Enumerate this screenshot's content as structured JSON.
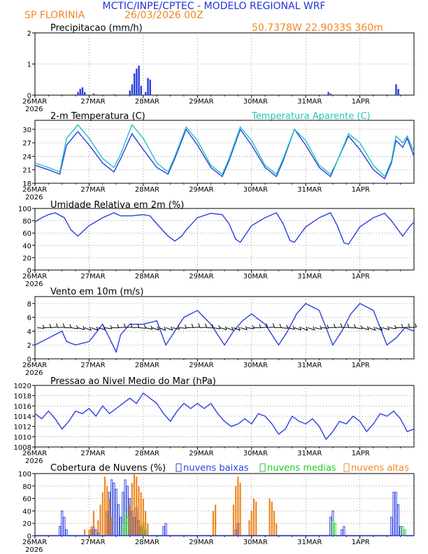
{
  "header": {
    "title": "MCTIC/INPE/CPTEC - MODELO REGIONAL WRF",
    "location": "SP FLORINIA",
    "run": "26/03/2026 00Z",
    "coords": "50.7378W  22.9033S  360m"
  },
  "colors": {
    "title": "#2233dd",
    "orange": "#ee8822",
    "blue": "#2a3fe0",
    "cyan": "#22c4c0",
    "green": "#22cc22",
    "grid": "#888888"
  },
  "x_axis": {
    "ticks": [
      "26MAR",
      "27MAR",
      "28MAR",
      "29MAR",
      "30MAR",
      "31MAR",
      "1APR"
    ],
    "year": "2026",
    "range_hours": [
      0,
      168
    ]
  },
  "chart_data": [
    {
      "type": "bar",
      "title": "Precipitacao (mm/h)",
      "ylim": [
        0,
        2
      ],
      "yticks": [
        0,
        1,
        2
      ],
      "series": [
        {
          "name": "precipitacao",
          "x_hours": [
            19,
            20,
            21,
            22,
            26,
            35,
            42,
            43,
            44,
            45,
            46,
            47,
            49,
            50,
            51,
            130,
            131,
            160,
            161
          ],
          "values": [
            0.1,
            0.2,
            0.25,
            0.1,
            0.05,
            0.03,
            0.15,
            0.35,
            0.7,
            0.85,
            0.95,
            0.3,
            0.1,
            0.55,
            0.5,
            0.1,
            0.05,
            0.35,
            0.2
          ]
        }
      ]
    },
    {
      "type": "line",
      "title": "2-m Temperatura (C)",
      "legend": "Temperatura Aparente (C)",
      "ylim": [
        18,
        32
      ],
      "yticks": [
        18,
        21,
        24,
        27,
        30
      ],
      "series": [
        {
          "name": "2-m Temperatura",
          "x_hours": [
            0,
            6,
            11,
            14,
            19,
            24,
            30,
            35,
            38,
            43,
            48,
            54,
            59,
            62,
            67,
            72,
            78,
            83,
            86,
            91,
            96,
            102,
            107,
            110,
            115,
            120,
            126,
            131,
            134,
            139,
            144,
            150,
            155,
            158,
            160,
            163,
            165,
            168
          ],
          "values": [
            22,
            21,
            20,
            26.5,
            29.5,
            26.5,
            22.5,
            20.5,
            23.5,
            29,
            25.5,
            21.5,
            20,
            23.5,
            30,
            26.5,
            21.5,
            19.5,
            23,
            30,
            26.5,
            21.5,
            19.5,
            23,
            30,
            26.5,
            21.5,
            19.5,
            23,
            28.5,
            25.5,
            21,
            19,
            22.5,
            27.5,
            26,
            28,
            24
          ]
        },
        {
          "name": "Temperatura Aparente",
          "x_hours": [
            0,
            6,
            11,
            14,
            19,
            24,
            30,
            35,
            38,
            43,
            48,
            54,
            59,
            62,
            67,
            72,
            78,
            83,
            86,
            91,
            96,
            102,
            107,
            110,
            115,
            120,
            126,
            131,
            134,
            139,
            144,
            150,
            155,
            158,
            160,
            163,
            165,
            168
          ],
          "values": [
            22.5,
            21.5,
            20.5,
            28,
            31,
            28,
            23.5,
            21.5,
            24.5,
            31,
            28,
            22.5,
            20.5,
            24,
            30.5,
            27.5,
            22,
            20,
            23.5,
            30.5,
            27.5,
            22,
            20,
            23.5,
            30,
            27.5,
            22,
            20,
            23,
            29,
            27,
            22,
            19.5,
            23,
            28.5,
            27,
            28.5,
            25
          ]
        }
      ]
    },
    {
      "type": "line",
      "title": "Umidade Relativa em 2m (%)",
      "ylim": [
        0,
        100
      ],
      "yticks": [
        0,
        20,
        40,
        60,
        80,
        100
      ],
      "series": [
        {
          "name": "umidade",
          "x_hours": [
            0,
            3,
            6,
            9,
            13,
            16,
            19,
            24,
            30,
            35,
            38,
            43,
            48,
            51,
            54,
            59,
            62,
            65,
            67,
            72,
            78,
            83,
            86,
            89,
            91,
            96,
            102,
            107,
            110,
            113,
            115,
            120,
            126,
            131,
            134,
            137,
            139,
            144,
            150,
            155,
            158,
            163,
            166,
            168
          ],
          "values": [
            78,
            85,
            90,
            93,
            85,
            65,
            55,
            72,
            85,
            93,
            88,
            88,
            90,
            88,
            75,
            55,
            47,
            55,
            65,
            85,
            92,
            90,
            75,
            50,
            45,
            72,
            85,
            93,
            75,
            48,
            45,
            70,
            85,
            93,
            72,
            44,
            42,
            70,
            85,
            92,
            80,
            55,
            70,
            78
          ]
        }
      ]
    },
    {
      "type": "line",
      "title": "Vento em 10m (m/s)",
      "ylim": [
        0,
        9
      ],
      "yticks": [
        0,
        2,
        4,
        6,
        8
      ],
      "series": [
        {
          "name": "vento",
          "x_hours": [
            0,
            6,
            12,
            14,
            18,
            24,
            30,
            36,
            38,
            42,
            48,
            54,
            58,
            62,
            66,
            72,
            78,
            84,
            88,
            92,
            96,
            102,
            108,
            112,
            116,
            120,
            126,
            132,
            136,
            140,
            144,
            150,
            156,
            160,
            164,
            168
          ],
          "values": [
            2,
            3,
            4,
            2.5,
            2,
            2.5,
            5,
            1,
            3.5,
            5,
            5,
            5.5,
            2,
            4,
            6,
            7,
            5,
            2,
            4,
            5.5,
            6.5,
            5,
            2,
            4,
            6.5,
            8,
            7,
            2,
            4,
            6.5,
            8,
            7,
            2,
            3,
            4.5,
            4
          ]
        }
      ],
      "barb_level": 4.5
    },
    {
      "type": "line",
      "title": "Pressao ao Nivel Medio do Mar (hPa)",
      "ylim": [
        1008,
        1020
      ],
      "yticks": [
        1008,
        1010,
        1012,
        1014,
        1016,
        1018,
        1020
      ],
      "series": [
        {
          "name": "pressao",
          "x_hours": [
            0,
            3,
            6,
            9,
            12,
            15,
            18,
            21,
            24,
            27,
            30,
            33,
            36,
            39,
            42,
            45,
            48,
            51,
            54,
            57,
            60,
            63,
            66,
            69,
            72,
            75,
            78,
            81,
            84,
            87,
            90,
            93,
            96,
            99,
            102,
            105,
            108,
            111,
            114,
            117,
            120,
            123,
            126,
            129,
            132,
            135,
            138,
            141,
            144,
            147,
            150,
            153,
            156,
            159,
            162,
            165,
            168
          ],
          "values": [
            1014.5,
            1013.5,
            1015,
            1013.5,
            1011.5,
            1013,
            1015,
            1014.5,
            1015.5,
            1014,
            1016,
            1014.5,
            1015.5,
            1016.5,
            1017.5,
            1016.5,
            1018.5,
            1017.5,
            1016.5,
            1014.5,
            1013,
            1015,
            1016.5,
            1015.5,
            1016.5,
            1015.5,
            1016.5,
            1014.5,
            1013,
            1012,
            1012.5,
            1013.5,
            1012.5,
            1014.5,
            1014,
            1012.5,
            1010.5,
            1011.5,
            1014,
            1013,
            1012.5,
            1013.5,
            1012,
            1009.5,
            1011,
            1013,
            1012.5,
            1014,
            1013,
            1011,
            1012.5,
            1014.5,
            1014,
            1015,
            1013.5,
            1011,
            1011.5
          ]
        }
      ]
    },
    {
      "type": "bar",
      "title": "Cobertura de Nuvens (%)",
      "legend": [
        "nuvens baixas",
        "nuvens medias",
        "nuvens altas"
      ],
      "ylim": [
        0,
        100
      ],
      "yticks": [
        0,
        20,
        40,
        60,
        80,
        100
      ],
      "series": [
        {
          "name": "nuvens baixas",
          "x_hours": [
            11,
            12,
            13,
            14,
            25,
            26,
            27,
            28,
            32,
            33,
            34,
            35,
            36,
            37,
            38,
            39,
            40,
            41,
            42,
            43,
            44,
            45,
            46,
            47,
            48,
            49,
            57,
            58,
            89,
            90,
            131,
            132,
            136,
            137,
            158,
            159,
            160,
            161,
            162
          ],
          "values": [
            15,
            40,
            30,
            10,
            10,
            15,
            10,
            5,
            40,
            70,
            90,
            85,
            75,
            50,
            30,
            70,
            90,
            80,
            60,
            40,
            30,
            45,
            25,
            15,
            10,
            5,
            15,
            20,
            10,
            20,
            30,
            40,
            10,
            15,
            30,
            70,
            70,
            50,
            15
          ]
        },
        {
          "name": "nuvens medias",
          "x_hours": [
            39,
            40,
            41,
            47,
            48,
            49,
            132,
            133,
            163,
            164
          ],
          "values": [
            20,
            40,
            30,
            15,
            20,
            10,
            25,
            20,
            15,
            10
          ]
        },
        {
          "name": "nuvens altas",
          "x_hours": [
            22,
            24,
            25,
            26,
            28,
            29,
            30,
            31,
            32,
            33,
            34,
            42,
            43,
            44,
            45,
            46,
            47,
            48,
            49,
            50,
            79,
            80,
            88,
            89,
            90,
            91,
            95,
            96,
            97,
            98,
            104,
            105,
            106,
            107
          ],
          "values": [
            10,
            10,
            15,
            40,
            25,
            50,
            70,
            95,
            80,
            60,
            30,
            50,
            85,
            100,
            95,
            80,
            70,
            60,
            40,
            20,
            40,
            50,
            50,
            80,
            95,
            85,
            25,
            40,
            60,
            55,
            60,
            55,
            40,
            20
          ]
        }
      ]
    }
  ]
}
